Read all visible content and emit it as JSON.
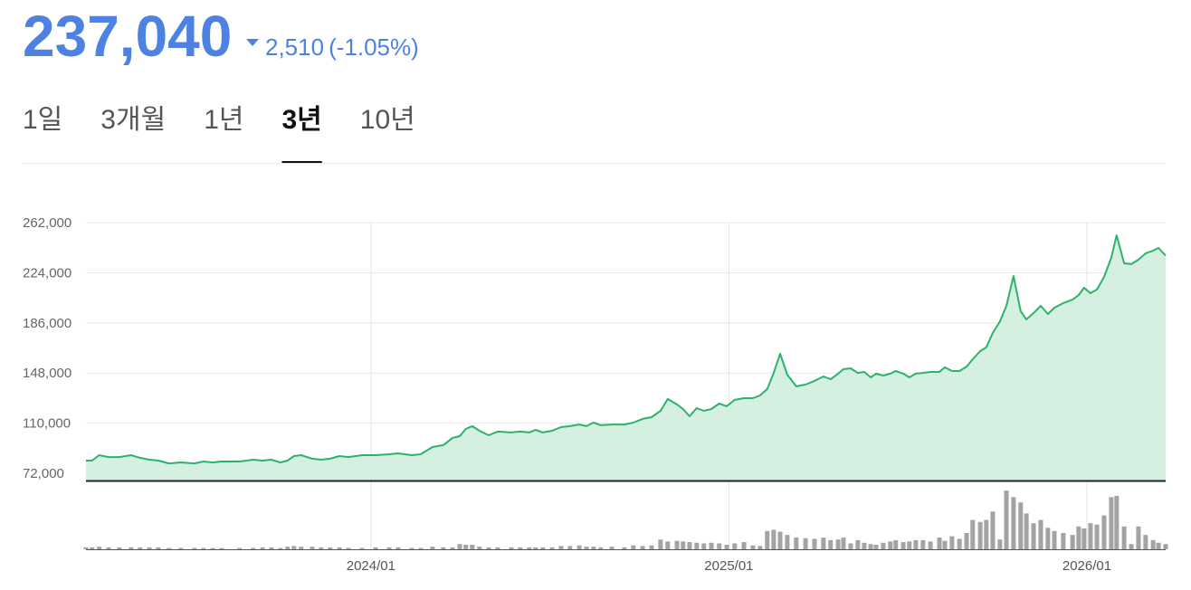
{
  "header": {
    "price": "237,040",
    "change": "2,510",
    "change_rate": "(-1.05%)"
  },
  "tabs": [
    "1일",
    "3개월",
    "1년",
    "3년",
    "10년"
  ],
  "active_tab": 3,
  "chart_data": {
    "type": "area",
    "color": "#2bb36b",
    "fill_color": "#d5f0e1",
    "grid": true,
    "xlim": [
      2023.204,
      2026.22
    ],
    "xticks": [
      {
        "value": 2024,
        "label": "2024/01"
      },
      {
        "value": 2025,
        "label": "2025/01"
      },
      {
        "value": 2026,
        "label": "2026/01"
      }
    ],
    "ylim": [
      66500,
      273000
    ],
    "yticks": [
      {
        "value": 72000,
        "label": "72,000"
      },
      {
        "value": 110000,
        "label": "110,000"
      },
      {
        "value": 148000,
        "label": "148,000"
      },
      {
        "value": 186000,
        "label": "186,000"
      },
      {
        "value": 224000,
        "label": "224,000"
      },
      {
        "value": 262000,
        "label": "262,000"
      }
    ],
    "x": [
      2023.204,
      2023.221,
      2023.241,
      2023.267,
      2023.297,
      2023.33,
      2023.355,
      2023.381,
      2023.406,
      2023.436,
      2023.469,
      2023.507,
      2023.532,
      2023.558,
      2023.583,
      2023.633,
      2023.671,
      2023.697,
      2023.722,
      2023.747,
      2023.767,
      2023.785,
      2023.805,
      2023.836,
      2023.861,
      2023.886,
      2023.912,
      2023.937,
      2023.975,
      2024.013,
      2024.051,
      2024.076,
      2024.114,
      2024.139,
      2024.172,
      2024.202,
      2024.228,
      2024.248,
      2024.265,
      2024.283,
      2024.303,
      2024.329,
      2024.354,
      2024.392,
      2024.417,
      2024.442,
      2024.46,
      2024.48,
      2024.506,
      2024.531,
      2024.556,
      2024.582,
      2024.602,
      2024.622,
      2024.642,
      2024.673,
      2024.708,
      2024.733,
      2024.759,
      2024.784,
      2024.809,
      2024.829,
      2024.855,
      2024.872,
      2024.89,
      2024.91,
      2024.93,
      2024.951,
      2024.973,
      2024.994,
      2025.016,
      2025.042,
      2025.067,
      2025.087,
      2025.107,
      2025.125,
      2025.143,
      2025.163,
      2025.188,
      2025.214,
      2025.239,
      2025.264,
      2025.284,
      2025.305,
      2025.32,
      2025.34,
      2025.36,
      2025.378,
      2025.396,
      2025.411,
      2025.431,
      2025.451,
      2025.466,
      2025.487,
      2025.504,
      2025.522,
      2025.542,
      2025.563,
      2025.588,
      2025.603,
      2025.623,
      2025.644,
      2025.664,
      2025.681,
      2025.702,
      2025.719,
      2025.737,
      2025.757,
      2025.775,
      2025.795,
      2025.815,
      2025.831,
      2025.851,
      2025.871,
      2025.891,
      2025.909,
      2025.934,
      2025.96,
      2025.977,
      2025.992,
      2026.01,
      2026.028,
      2026.048,
      2026.068,
      2026.083,
      2026.104,
      2026.124,
      2026.144,
      2026.164,
      2026.185,
      2026.2,
      2026.22
    ],
    "values": [
      81600,
      81600,
      85700,
      84300,
      84300,
      85700,
      83700,
      82300,
      81600,
      79500,
      80200,
      79500,
      80900,
      80200,
      80900,
      80900,
      82300,
      81600,
      82300,
      80200,
      81600,
      85000,
      85700,
      83000,
      82300,
      83000,
      85000,
      84300,
      85700,
      85700,
      86400,
      87100,
      85700,
      86400,
      91900,
      93300,
      98800,
      100100,
      105600,
      107700,
      104200,
      100800,
      103600,
      102900,
      103600,
      102900,
      104900,
      102900,
      104200,
      107000,
      107700,
      109000,
      107700,
      110400,
      108400,
      109000,
      109000,
      110400,
      113200,
      114500,
      119300,
      128300,
      124100,
      120700,
      115200,
      121400,
      119300,
      120700,
      124800,
      122800,
      127600,
      128900,
      128900,
      131000,
      135800,
      148100,
      162600,
      146800,
      137900,
      139200,
      142000,
      145400,
      143300,
      147500,
      150900,
      151600,
      148100,
      148800,
      144700,
      147500,
      146100,
      147500,
      149500,
      147500,
      144700,
      147500,
      148100,
      148800,
      148800,
      152300,
      149500,
      149500,
      152900,
      158400,
      164600,
      167400,
      178300,
      187200,
      198900,
      221500,
      194800,
      188600,
      193400,
      198900,
      192700,
      197500,
      201000,
      203700,
      207100,
      212600,
      208500,
      211300,
      220900,
      235300,
      252400,
      231200,
      230500,
      233900,
      238700,
      240800,
      242800,
      237040
    ],
    "volume_color": "#a3a3a3",
    "volume_ylim": [
      0,
      100
    ],
    "volume": [
      3,
      3,
      4,
      3,
      3,
      3,
      3,
      3,
      3,
      2,
      2,
      2,
      2,
      2,
      2,
      2,
      2,
      3,
      3,
      2,
      4,
      5,
      4,
      4,
      3,
      3,
      3,
      2,
      2,
      3,
      3,
      3,
      2,
      2,
      4,
      3,
      3,
      8,
      7,
      7,
      4,
      3,
      3,
      3,
      3,
      3,
      3,
      3,
      3,
      5,
      5,
      6,
      4,
      4,
      3,
      4,
      3,
      6,
      5,
      6,
      15,
      12,
      13,
      12,
      11,
      10,
      9,
      10,
      9,
      7,
      9,
      11,
      6,
      5,
      28,
      30,
      27,
      22,
      18,
      17,
      16,
      18,
      14,
      15,
      18,
      9,
      14,
      10,
      8,
      7,
      10,
      12,
      14,
      11,
      12,
      14,
      14,
      12,
      18,
      13,
      20,
      16,
      25,
      45,
      42,
      45,
      58,
      15,
      90,
      80,
      72,
      55,
      40,
      45,
      33,
      28,
      25,
      22,
      35,
      32,
      40,
      38,
      52,
      80,
      82,
      35,
      8,
      35,
      22,
      14,
      10,
      8
    ]
  }
}
